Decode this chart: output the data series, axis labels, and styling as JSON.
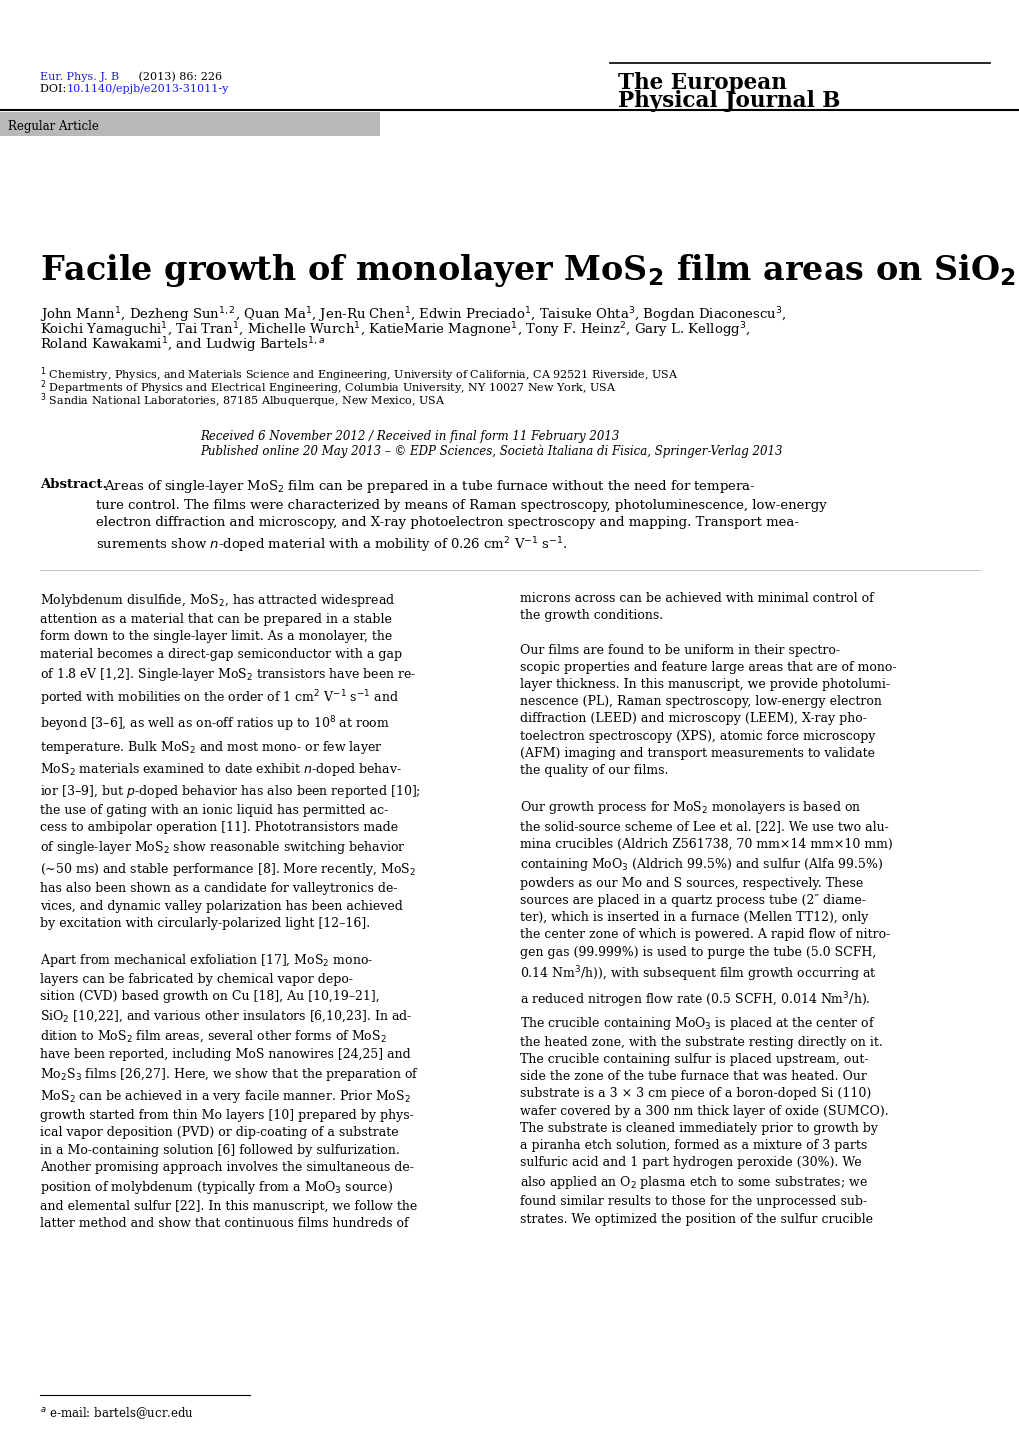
{
  "background_color": "#ffffff",
  "journal_ref_line1": "Eur. Phys. J. B (2013) 86: 226",
  "journal_ref_line1_blue_part": "Eur. Phys. J. B",
  "journal_doi_prefix": "DOI: ",
  "journal_doi_link": "10.1140/epjb/e2013-31011-y",
  "journal_name_line1": "The European",
  "journal_name_line2": "Physical Journal B",
  "article_type_text": "Regular Article",
  "article_type_bg": "#b8b8b8",
  "blue_color": "#2222cc",
  "link_color": "#1a1aff",
  "received_text": "Received 6 November 2012 / Received in final form 11 February 2013",
  "published_text": "Published online 20 May 2013 – © EDP Sciences, Società Italiana di Fisica, Springer-Verlag 2013"
}
